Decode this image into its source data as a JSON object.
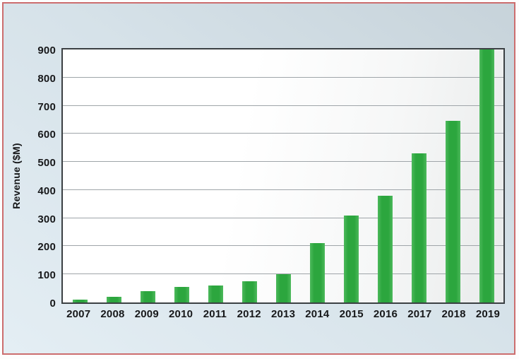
{
  "chart_data": {
    "type": "bar",
    "title": "",
    "categories": [
      "2007",
      "2008",
      "2009",
      "2010",
      "2011",
      "2012",
      "2013",
      "2014",
      "2015",
      "2016",
      "2017",
      "2018",
      "2019"
    ],
    "values": [
      10,
      20,
      40,
      55,
      60,
      75,
      100,
      210,
      310,
      380,
      530,
      645,
      900
    ],
    "xlabel": "",
    "ylabel": "Revenue ($M)",
    "ylim": [
      0,
      900
    ],
    "yticks": [
      0,
      100,
      200,
      300,
      400,
      500,
      600,
      700,
      800,
      900
    ],
    "grid": "horizontal",
    "legend": "none"
  },
  "colors": {
    "bar_green": "#2ca63e",
    "bar_green_edge": "#4db95c",
    "frame_border": "#cc6d6e",
    "plot_border": "#3b4043",
    "gridline": "#9fa5a9",
    "background_dark": "#c7d3da",
    "background_light": "#e4eef4",
    "tick_text": "#17181a"
  }
}
